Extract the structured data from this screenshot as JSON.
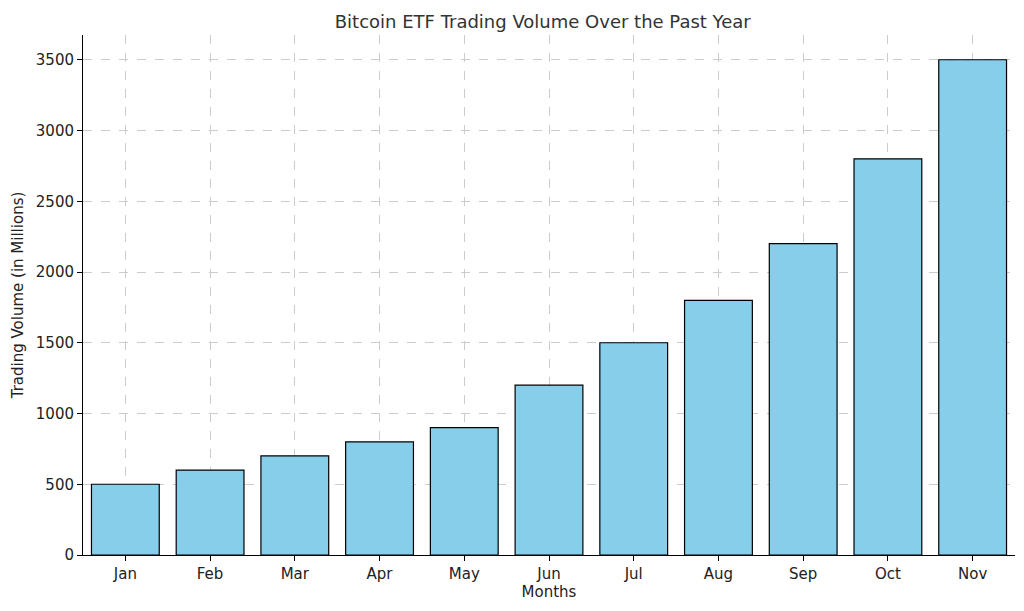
{
  "chart_data": {
    "type": "bar",
    "title": "Bitcoin ETF Trading Volume Over the Past Year",
    "x_label": "Months",
    "y_label": "Trading Volume (in Millions)",
    "categories": [
      "Jan",
      "Feb",
      "Mar",
      "Apr",
      "May",
      "Jun",
      "Jul",
      "Aug",
      "Sep",
      "Oct",
      "Nov"
    ],
    "values": [
      500,
      600,
      700,
      800,
      900,
      1200,
      1500,
      1800,
      2200,
      2800,
      3500
    ],
    "color": "#87ceeb",
    "ylim": [
      0,
      3675
    ],
    "yticks": [
      0,
      500,
      1000,
      1500,
      2000,
      2500,
      3000,
      3500
    ],
    "grid": true
  }
}
